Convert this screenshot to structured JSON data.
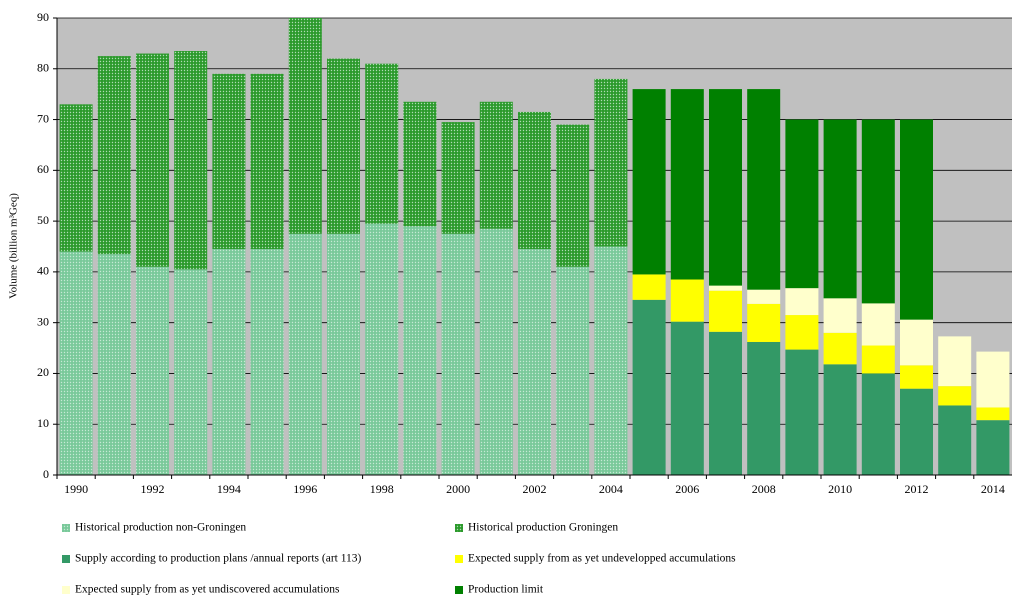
{
  "chart_data": {
    "type": "stacked_bar",
    "ylabel": "Volume (billion m³Geq)",
    "categories": [
      "1990",
      null,
      "1992",
      null,
      "1994",
      null,
      "1996",
      null,
      "1998",
      null,
      "2000",
      null,
      "2002",
      null,
      "2004",
      null,
      "2006",
      null,
      "2008",
      null,
      "2010",
      null,
      "2012",
      null,
      "2014"
    ],
    "series": [
      {
        "name": "Historical production non-Groningen",
        "color": "#79c99a",
        "pattern": "dotted",
        "values": [
          44,
          43.5,
          41,
          40.5,
          44.5,
          44.5,
          47.5,
          47.5,
          49.5,
          49,
          47.5,
          48.5,
          44.5,
          41,
          45,
          null,
          null,
          null,
          null,
          null,
          null,
          null,
          null,
          null,
          null
        ]
      },
      {
        "name": "Historical production Groningen",
        "color": "#2b9a2b",
        "pattern": "dotted",
        "values": [
          29,
          39,
          42,
          43,
          34.5,
          34.5,
          42.5,
          34.5,
          31.5,
          24.5,
          22,
          25,
          27,
          28,
          33,
          null,
          null,
          null,
          null,
          null,
          null,
          null,
          null,
          null,
          null
        ]
      },
      {
        "name": "Supply according to production plans /annual reports (art 113)",
        "color": "#339966",
        "values": [
          null,
          null,
          null,
          null,
          null,
          null,
          null,
          null,
          null,
          null,
          null,
          null,
          null,
          null,
          null,
          34.5,
          30.2,
          28.2,
          26.2,
          24.7,
          21.8,
          20,
          17,
          13.7,
          10.8
        ]
      },
      {
        "name": "Expected supply from as yet undevelopped accumulations",
        "color": "#ffff00",
        "values": [
          null,
          null,
          null,
          null,
          null,
          null,
          null,
          null,
          null,
          null,
          null,
          null,
          null,
          null,
          null,
          5,
          8.3,
          8.1,
          7.5,
          6.8,
          6.2,
          5.5,
          4.6,
          3.8,
          2.5
        ]
      },
      {
        "name": "Expected supply from as yet undiscovered accumulations",
        "color": "#ffffcc",
        "values": [
          null,
          null,
          null,
          null,
          null,
          null,
          null,
          null,
          null,
          null,
          null,
          null,
          null,
          null,
          null,
          0,
          0,
          1,
          2.8,
          5.3,
          6.8,
          8.3,
          9,
          9.8,
          11
        ]
      },
      {
        "name": "Production limit",
        "color": "#008000",
        "values": [
          null,
          null,
          null,
          null,
          null,
          null,
          null,
          null,
          null,
          null,
          null,
          null,
          null,
          null,
          null,
          36.5,
          37.5,
          38.7,
          39.5,
          33.2,
          35.2,
          36.2,
          39.4,
          null,
          null
        ]
      }
    ],
    "ylim": [
      0,
      90
    ],
    "yticks": [
      0,
      10,
      20,
      30,
      40,
      50,
      60,
      70,
      80,
      90
    ],
    "grid": true,
    "plot_background": "#c0c0c0"
  }
}
